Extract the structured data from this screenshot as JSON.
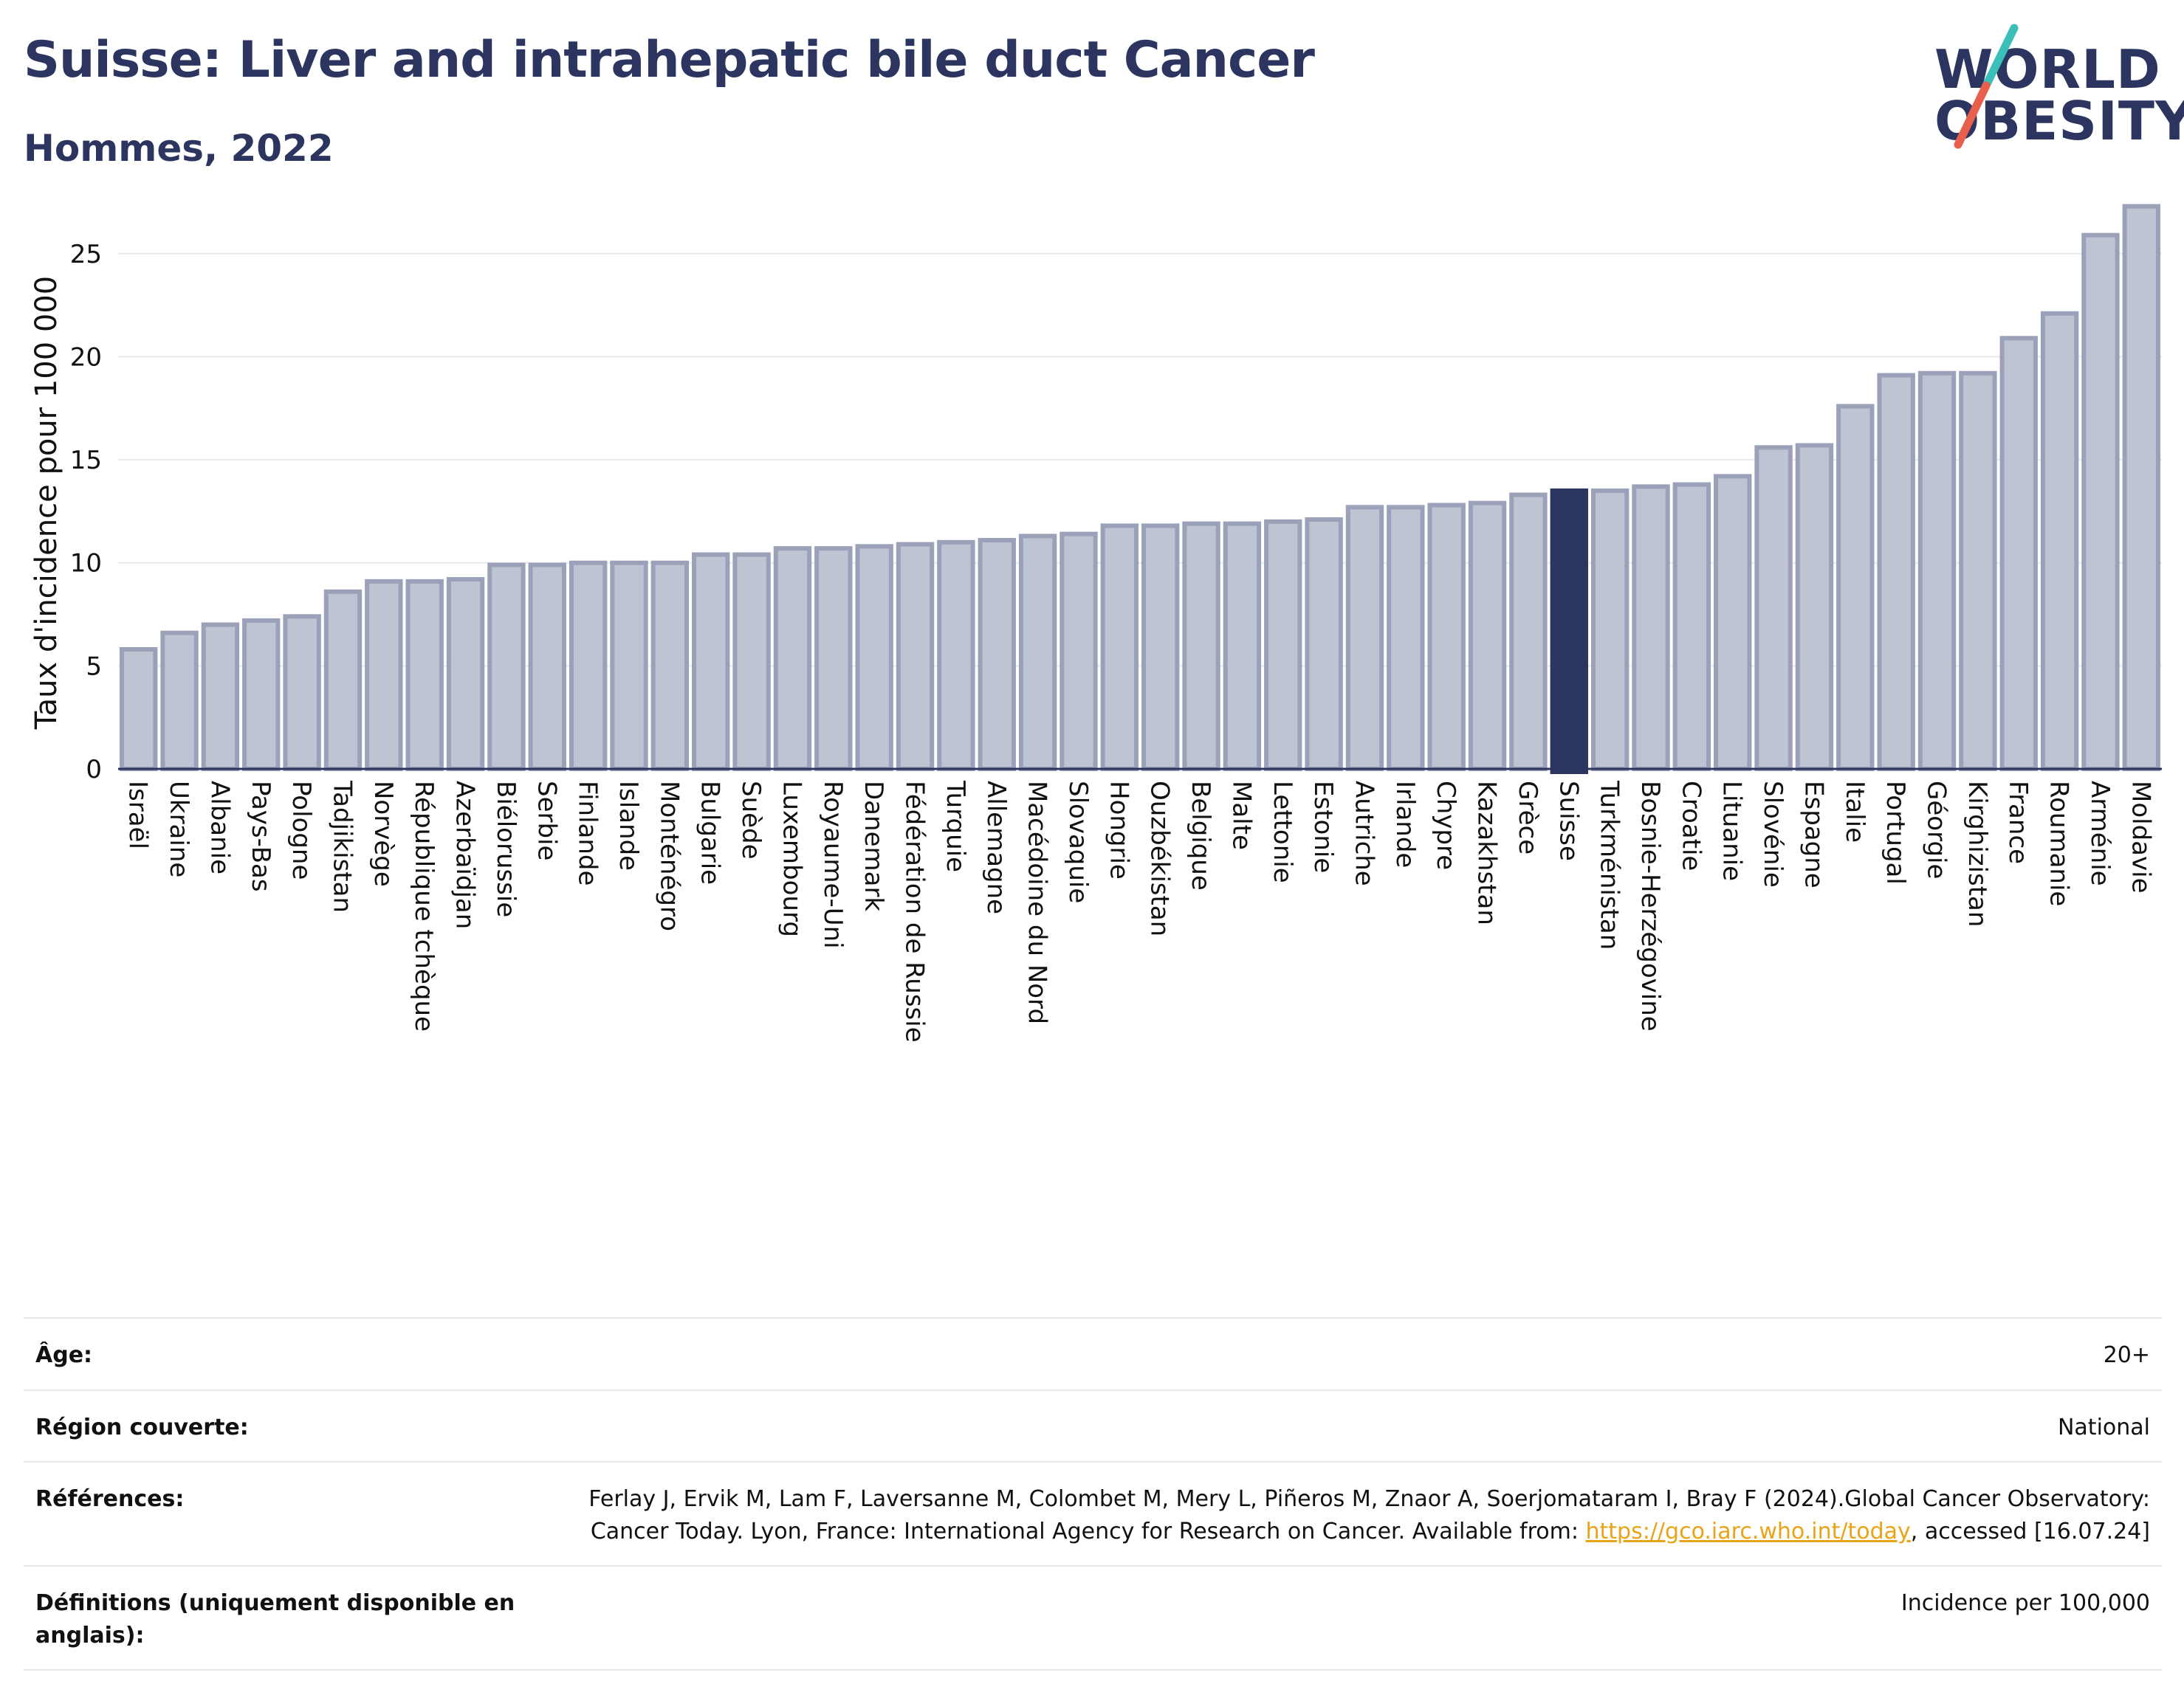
{
  "header": {
    "title": "Suisse: Liver and intrahepatic bile duct Cancer",
    "subtitle": "Hommes, 2022"
  },
  "logo": {
    "line1": "WORLD",
    "line2": "OBESITY",
    "colors": {
      "text": "#2b3560",
      "slash_top": "#3bbfb8",
      "slash_bottom": "#e8604c"
    }
  },
  "colors": {
    "bar_fill": "#bfc4d2",
    "bar_stroke": "#9aa1b8",
    "highlight": "#2b3560",
    "grid": "#e8e9ee",
    "axis": "#2b3560"
  },
  "chart_data": {
    "type": "bar",
    "ylabel": "Taux d'incidence pour 100 000",
    "ylim": [
      0,
      28
    ],
    "yticks": [
      0,
      5,
      10,
      15,
      20,
      25
    ],
    "grid": true,
    "highlight": "Suisse",
    "categories": [
      "Israël",
      "Ukraine",
      "Albanie",
      "Pays-Bas",
      "Pologne",
      "Tadjikistan",
      "Norvège",
      "République tchèque",
      "Azerbaïdjan",
      "Biélorussie",
      "Serbie",
      "Finlande",
      "Islande",
      "Monténégro",
      "Bulgarie",
      "Suède",
      "Luxembourg",
      "Royaume-Uni",
      "Danemark",
      "Fédération de Russie",
      "Turquie",
      "Allemagne",
      "Macédoine du Nord",
      "Slovaquie",
      "Hongrie",
      "Ouzbékistan",
      "Belgique",
      "Malte",
      "Lettonie",
      "Estonie",
      "Autriche",
      "Irlande",
      "Chypre",
      "Kazakhstan",
      "Grèce",
      "Suisse",
      "Turkménistan",
      "Bosnie-Herzégovine",
      "Croatie",
      "Lituanie",
      "Slovénie",
      "Espagne",
      "Italie",
      "Portugal",
      "Géorgie",
      "Kirghizistan",
      "France",
      "Roumanie",
      "Arménie",
      "Moldavie"
    ],
    "values": [
      5.8,
      6.6,
      7.0,
      7.2,
      7.4,
      8.6,
      9.1,
      9.1,
      9.2,
      9.9,
      9.9,
      10.0,
      10.0,
      10.0,
      10.4,
      10.4,
      10.7,
      10.7,
      10.8,
      10.9,
      11.0,
      11.1,
      11.3,
      11.4,
      11.8,
      11.8,
      11.9,
      11.9,
      12.0,
      12.1,
      12.7,
      12.7,
      12.8,
      12.9,
      13.3,
      13.5,
      13.5,
      13.7,
      13.8,
      14.2,
      15.6,
      15.7,
      17.6,
      19.1,
      19.2,
      19.2,
      20.9,
      22.1,
      25.9,
      27.3
    ]
  },
  "info": {
    "rows": [
      {
        "label": "Âge:",
        "value": "20+"
      },
      {
        "label": "Région couverte:",
        "value": "National"
      },
      {
        "label": "Références:",
        "value_before": "Ferlay J, Ervik M, Lam F, Laversanne M, Colombet M, Mery L, Piñeros M, Znaor A, Soerjomataram I, Bray F (2024).Global Cancer Observatory: Cancer Today. Lyon, France: International Agency for Research on Cancer. Available from: ",
        "link": "https://gco.iarc.who.int/today",
        "value_after": ", accessed [16.07.24]"
      },
      {
        "label": "Définitions (uniquement disponible en anglais):",
        "value": "Incidence per 100,000"
      }
    ]
  }
}
